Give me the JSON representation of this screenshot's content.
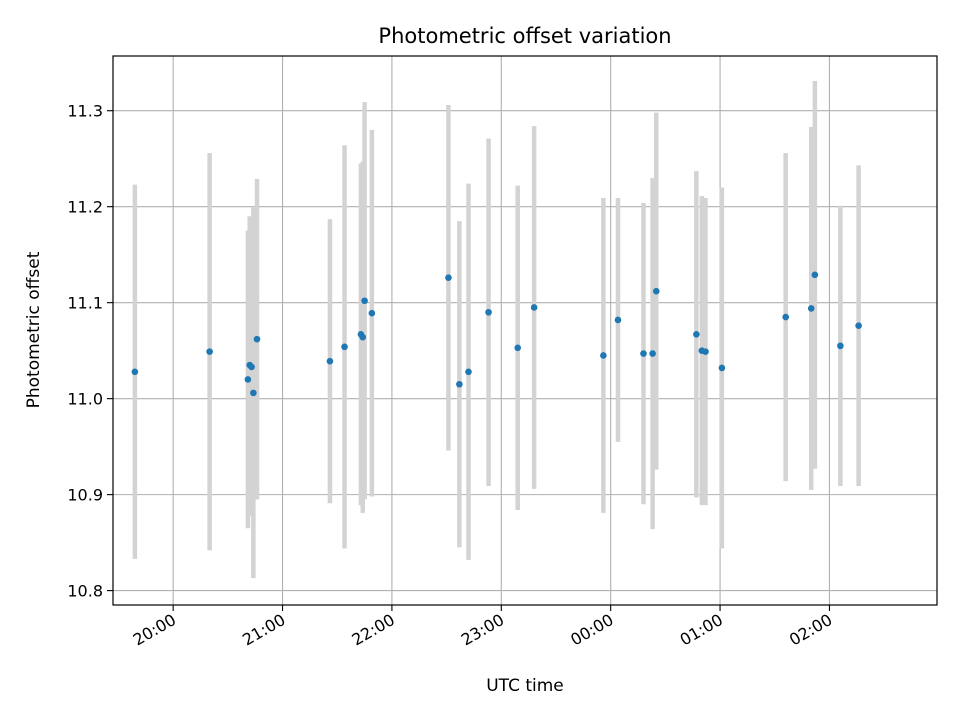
{
  "chart_data": {
    "type": "scatter",
    "title": "Photometric offset variation",
    "xlabel": "UTC time",
    "ylabel": "Photometric offset",
    "x_ticks": [
      "20:00",
      "21:00",
      "22:00",
      "23:00",
      "00:00",
      "01:00",
      "02:00"
    ],
    "y_ticks": [
      "10.8",
      "10.9",
      "11.0",
      "11.1",
      "11.2",
      "11.3"
    ],
    "x_range": [
      "19:27",
      "02:59"
    ],
    "ylim": [
      10.785,
      11.357
    ],
    "grid": true,
    "colors": {
      "point": "#1f77b4",
      "errorbar": "#d3d3d3",
      "grid": "#b0b0b0"
    },
    "points": [
      {
        "x": "19:39",
        "y": 11.028,
        "err": 0.195
      },
      {
        "x": "20:20",
        "y": 11.049,
        "err": 0.207
      },
      {
        "x": "20:41",
        "y": 11.02,
        "err": 0.155
      },
      {
        "x": "20:42",
        "y": 11.035,
        "err": 0.155
      },
      {
        "x": "20:43",
        "y": 11.033,
        "err": 0.155
      },
      {
        "x": "20:44",
        "y": 11.006,
        "err": 0.193
      },
      {
        "x": "20:46",
        "y": 11.062,
        "err": 0.167
      },
      {
        "x": "21:26",
        "y": 11.039,
        "err": 0.148
      },
      {
        "x": "21:34",
        "y": 11.054,
        "err": 0.21
      },
      {
        "x": "21:43",
        "y": 11.067,
        "err": 0.178
      },
      {
        "x": "21:44",
        "y": 11.064,
        "err": 0.183
      },
      {
        "x": "21:45",
        "y": 11.102,
        "err": 0.207
      },
      {
        "x": "21:49",
        "y": 11.089,
        "err": 0.191
      },
      {
        "x": "22:31",
        "y": 11.126,
        "err": 0.18
      },
      {
        "x": "22:37",
        "y": 11.015,
        "err": 0.17
      },
      {
        "x": "22:42",
        "y": 11.028,
        "err": 0.196
      },
      {
        "x": "22:53",
        "y": 11.09,
        "err": 0.181
      },
      {
        "x": "23:09",
        "y": 11.053,
        "err": 0.169
      },
      {
        "x": "23:18",
        "y": 11.095,
        "err": 0.189
      },
      {
        "x": "23:56",
        "y": 11.045,
        "err": 0.164
      },
      {
        "x": "00:04",
        "y": 11.082,
        "err": 0.127
      },
      {
        "x": "00:18",
        "y": 11.047,
        "err": 0.157
      },
      {
        "x": "00:23",
        "y": 11.047,
        "err": 0.183
      },
      {
        "x": "00:25",
        "y": 11.112,
        "err": 0.186
      },
      {
        "x": "00:47",
        "y": 11.067,
        "err": 0.17
      },
      {
        "x": "00:50",
        "y": 11.05,
        "err": 0.161
      },
      {
        "x": "00:52",
        "y": 11.049,
        "err": 0.16
      },
      {
        "x": "01:01",
        "y": 11.032,
        "err": 0.188
      },
      {
        "x": "01:36",
        "y": 11.085,
        "err": 0.171
      },
      {
        "x": "01:50",
        "y": 11.094,
        "err": 0.189
      },
      {
        "x": "01:52",
        "y": 11.129,
        "err": 0.202
      },
      {
        "x": "02:06",
        "y": 11.055,
        "err": 0.146
      },
      {
        "x": "02:16",
        "y": 11.076,
        "err": 0.167
      }
    ]
  }
}
